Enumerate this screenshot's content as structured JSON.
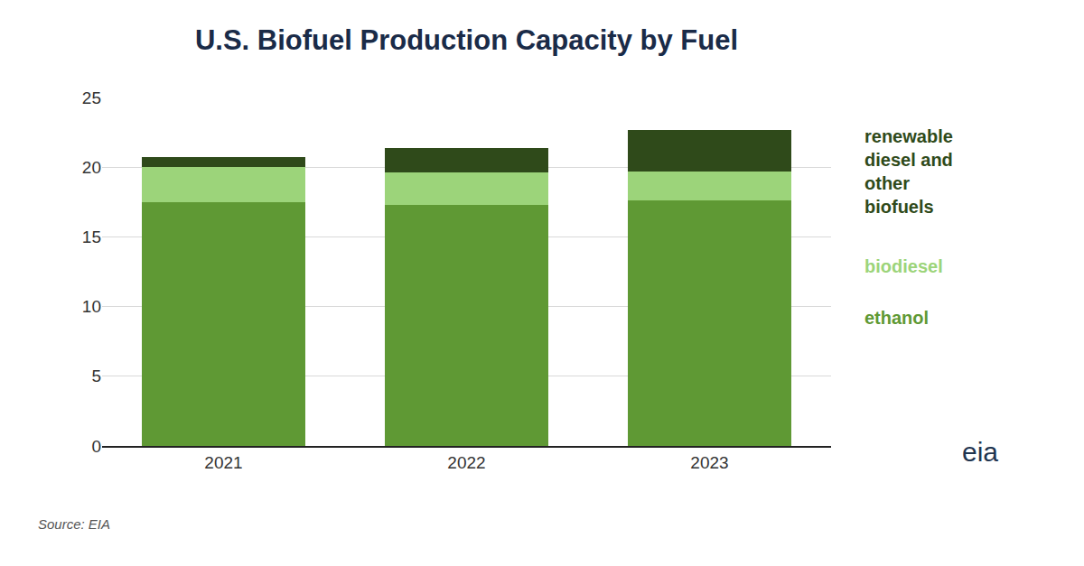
{
  "chart_data": {
    "type": "bar",
    "title": "U.S. Biofuel Production Capacity by Fuel",
    "source": "Source: EIA",
    "logo_text": "eia",
    "categories": [
      "2021",
      "2022",
      "2023"
    ],
    "stacked": true,
    "grid": true,
    "series": [
      {
        "name": "ethanol",
        "color": "#5f9934",
        "values": [
          17.5,
          17.3,
          17.6
        ]
      },
      {
        "name": "biodiesel",
        "color": "#9cd47a",
        "values": [
          2.5,
          2.3,
          2.1
        ]
      },
      {
        "name": "renewable diesel and other biofuels",
        "color": "#2f4a1a",
        "values": [
          0.7,
          1.8,
          3.0
        ]
      }
    ],
    "ylim": [
      0,
      25
    ],
    "yticks": [
      0,
      5,
      10,
      15,
      20,
      25
    ]
  }
}
